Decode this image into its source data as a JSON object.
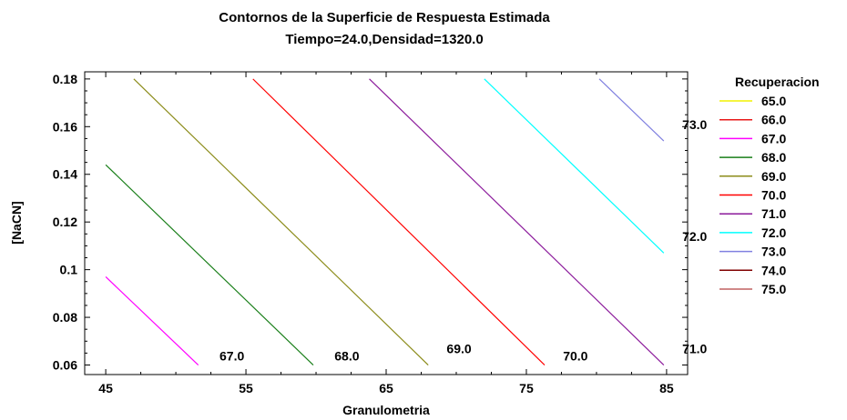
{
  "chart_data": {
    "type": "contour",
    "title": "Contornos de la Superficie de Respuesta Estimada",
    "subtitle": "Tiempo=24.0,Densidad=1320.0",
    "xlabel": "Granulometria",
    "ylabel": "[NaCN]",
    "xlim": [
      43.5,
      86.5
    ],
    "ylim": [
      0.056,
      0.183
    ],
    "x_ticks": [
      45,
      55,
      65,
      75,
      85
    ],
    "x_tick_labels": [
      "45",
      "55",
      "65",
      "75",
      "85"
    ],
    "y_ticks": [
      0.06,
      0.08,
      0.1,
      0.12,
      0.14,
      0.16,
      0.18
    ],
    "y_tick_labels": [
      "0.06",
      "0.08",
      "0.1",
      "0.12",
      "0.14",
      "0.16",
      "0.18"
    ],
    "legend_title": "Recuperacion",
    "legend_position": "right",
    "legend": [
      {
        "label": "65.0",
        "color": "#f2f200"
      },
      {
        "label": "66.0",
        "color": "#e81818"
      },
      {
        "label": "67.0",
        "color": "#ff00ff"
      },
      {
        "label": "68.0",
        "color": "#1a7f1a"
      },
      {
        "label": "69.0",
        "color": "#8c8c1a"
      },
      {
        "label": "70.0",
        "color": "#ff0000"
      },
      {
        "label": "71.0",
        "color": "#8b1a9b"
      },
      {
        "label": "72.0",
        "color": "#00ffff"
      },
      {
        "label": "73.0",
        "color": "#8080e0"
      },
      {
        "label": "74.0",
        "color": "#800000"
      },
      {
        "label": "75.0",
        "color": "#c06060"
      }
    ],
    "contours": [
      {
        "level": "67.0",
        "color": "#ff00ff",
        "points": [
          [
            45.0,
            0.097
          ],
          [
            51.6,
            0.06
          ]
        ],
        "label": "67.0",
        "label_at": [
          54.0,
          0.062
        ]
      },
      {
        "level": "68.0",
        "color": "#1a7f1a",
        "points": [
          [
            45.0,
            0.144
          ],
          [
            59.8,
            0.06
          ]
        ],
        "label": "68.0",
        "label_at": [
          62.2,
          0.062
        ]
      },
      {
        "level": "69.0",
        "color": "#8c8c1a",
        "points": [
          [
            47.0,
            0.18
          ],
          [
            68.0,
            0.06
          ]
        ],
        "label": "69.0",
        "label_at": [
          70.2,
          0.065
        ]
      },
      {
        "level": "70.0",
        "color": "#ff0000",
        "points": [
          [
            55.5,
            0.18
          ],
          [
            76.3,
            0.06
          ]
        ],
        "label": "70.0",
        "label_at": [
          78.5,
          0.062
        ]
      },
      {
        "level": "71.0",
        "color": "#8b1a9b",
        "points": [
          [
            63.8,
            0.18
          ],
          [
            84.8,
            0.06
          ]
        ],
        "label": "71.0",
        "label_at": [
          87.0,
          0.065
        ]
      },
      {
        "level": "72.0",
        "color": "#00ffff",
        "points": [
          [
            72.0,
            0.18
          ],
          [
            84.8,
            0.107
          ]
        ],
        "label": "72.0",
        "label_at": [
          87.0,
          0.112
        ]
      },
      {
        "level": "73.0",
        "color": "#8080e0",
        "points": [
          [
            80.2,
            0.18
          ],
          [
            84.8,
            0.154
          ]
        ],
        "label": "73.0",
        "label_at": [
          87.0,
          0.159
        ]
      }
    ]
  }
}
